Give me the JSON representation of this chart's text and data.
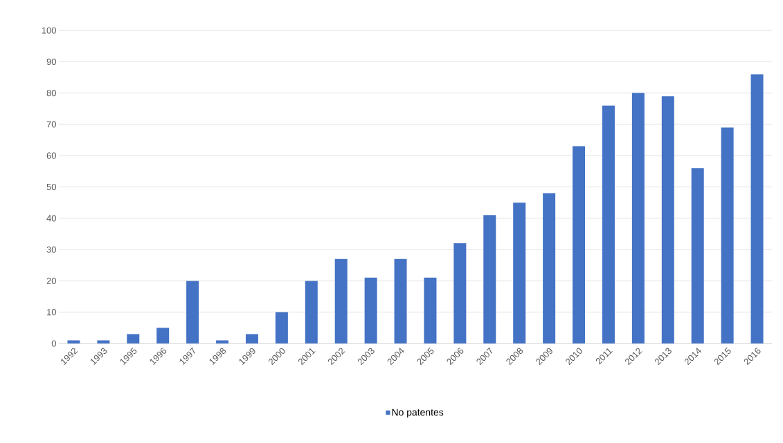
{
  "chart_data": {
    "type": "bar",
    "categories": [
      "1992",
      "1993",
      "1995",
      "1996",
      "1997",
      "1998",
      "1999",
      "2000",
      "2001",
      "2002",
      "2003",
      "2004",
      "2005",
      "2006",
      "2007",
      "2008",
      "2009",
      "2010",
      "2011",
      "2012",
      "2013",
      "2014",
      "2015",
      "2016"
    ],
    "series": [
      {
        "name": "No patentes",
        "color": "#4472c4",
        "values": [
          1,
          1,
          3,
          5,
          20,
          1,
          3,
          10,
          20,
          27,
          21,
          27,
          21,
          32,
          41,
          45,
          48,
          63,
          76,
          80,
          79,
          56,
          69,
          86
        ]
      }
    ],
    "ylim": [
      0,
      100
    ],
    "yticks": [
      0,
      10,
      20,
      30,
      40,
      50,
      60,
      70,
      80,
      90,
      100
    ],
    "grid": "y",
    "legend": "bottom"
  }
}
